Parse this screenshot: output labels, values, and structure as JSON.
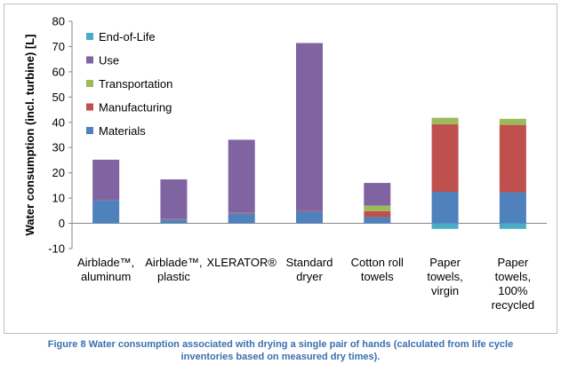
{
  "chart_data": {
    "type": "bar",
    "stacked": true,
    "ylabel": "Water consumption (incl. turbine) [L]",
    "ylim": [
      -10,
      80
    ],
    "yticks": [
      -10,
      0,
      10,
      20,
      30,
      40,
      50,
      60,
      70,
      80
    ],
    "categories": [
      [
        "Airblade™,",
        "aluminum"
      ],
      [
        "Airblade™,",
        "plastic"
      ],
      [
        "XLERATOR®"
      ],
      [
        "Standard",
        "dryer"
      ],
      [
        "Cotton roll",
        "towels"
      ],
      [
        "Paper",
        "towels,",
        "virgin"
      ],
      [
        "Paper",
        "towels,",
        "100%",
        "recycled"
      ]
    ],
    "series": [
      {
        "name": "Materials",
        "color": "#4f81bd",
        "values": [
          9.3,
          1.5,
          4.0,
          4.8,
          2.5,
          12.5,
          12.3
        ]
      },
      {
        "name": "Manufacturing",
        "color": "#c0504d",
        "values": [
          0.2,
          0.2,
          0.3,
          0.3,
          2.3,
          26.8,
          26.7
        ]
      },
      {
        "name": "Transportation",
        "color": "#9bbb59",
        "values": [
          0.0,
          0.0,
          0.0,
          0.0,
          2.2,
          2.5,
          2.4
        ]
      },
      {
        "name": "Use",
        "color": "#8064a2",
        "values": [
          15.7,
          15.7,
          28.8,
          66.3,
          9.0,
          0.0,
          0.0
        ]
      },
      {
        "name": "End-of-Life",
        "color": "#4bacc6",
        "values": [
          0.0,
          0.0,
          0.0,
          0.0,
          0.0,
          -2.2,
          -2.2
        ]
      }
    ],
    "legend_order": [
      "End-of-Life",
      "Use",
      "Transportation",
      "Manufacturing",
      "Materials"
    ],
    "legend_position": "top-left",
    "grid": false
  },
  "caption": {
    "line1": "Figure 8  Water consumption associated with drying a single pair of hands (calculated from life cycle",
    "line2": "inventories based on measured dry times)."
  }
}
